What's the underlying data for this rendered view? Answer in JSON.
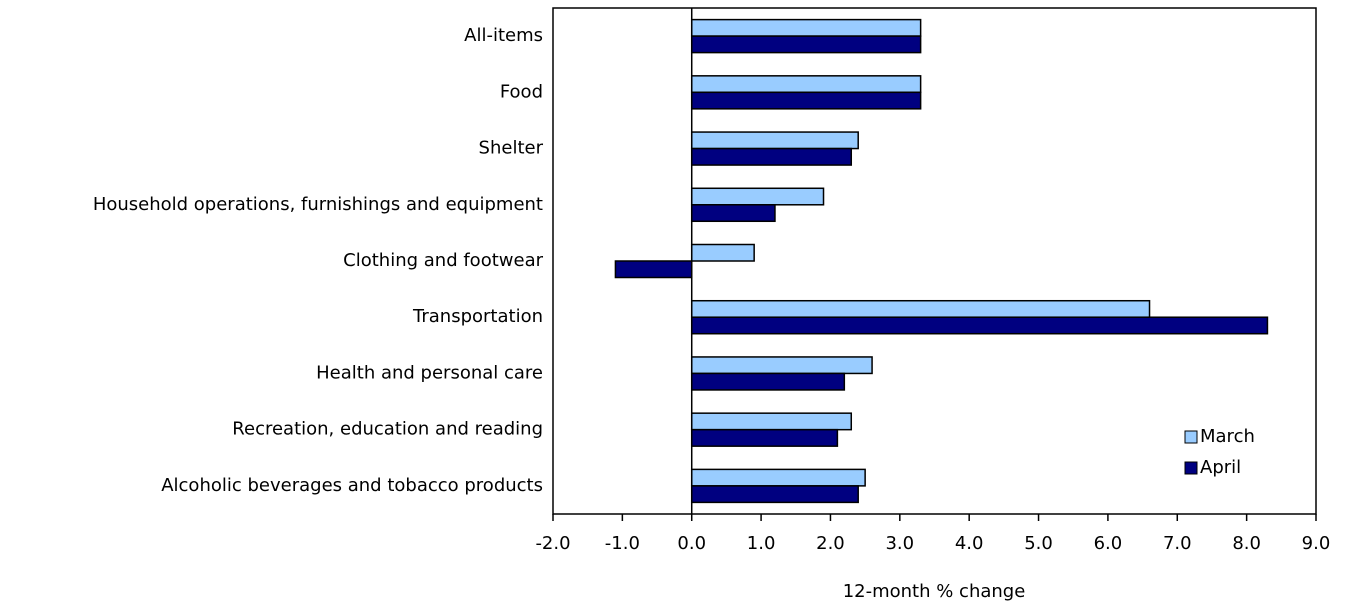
{
  "chart_data": {
    "type": "hbar",
    "x_label": "12-month % change",
    "categories": [
      "All-items",
      "Food",
      "Shelter",
      "Household operations, furnishings and equipment",
      "Clothing and footwear",
      "Transportation",
      "Health and personal care",
      "Recreation, education and reading",
      "Alcoholic beverages and tobacco products"
    ],
    "series": [
      {
        "name": "March",
        "color": "#99ccff",
        "values": [
          3.3,
          3.3,
          2.4,
          1.9,
          0.9,
          6.6,
          2.6,
          2.3,
          2.5
        ]
      },
      {
        "name": "April",
        "color": "#000080",
        "values": [
          3.3,
          3.3,
          2.3,
          1.2,
          -1.1,
          8.3,
          2.2,
          2.1,
          2.4
        ]
      }
    ],
    "xlim": [
      -2,
      9
    ],
    "xticks": [
      {
        "value": -2,
        "label": "-2.0"
      },
      {
        "value": -1,
        "label": "-1.0"
      },
      {
        "value": 0,
        "label": "0.0"
      },
      {
        "value": 1,
        "label": "1.0"
      },
      {
        "value": 2,
        "label": "2.0"
      },
      {
        "value": 3,
        "label": "3.0"
      },
      {
        "value": 4,
        "label": "4.0"
      },
      {
        "value": 5,
        "label": "5.0"
      },
      {
        "value": 6,
        "label": "6.0"
      },
      {
        "value": 7,
        "label": "7.0"
      },
      {
        "value": 8,
        "label": "8.0"
      },
      {
        "value": 9,
        "label": "9.0"
      }
    ],
    "legend": "lower right"
  }
}
